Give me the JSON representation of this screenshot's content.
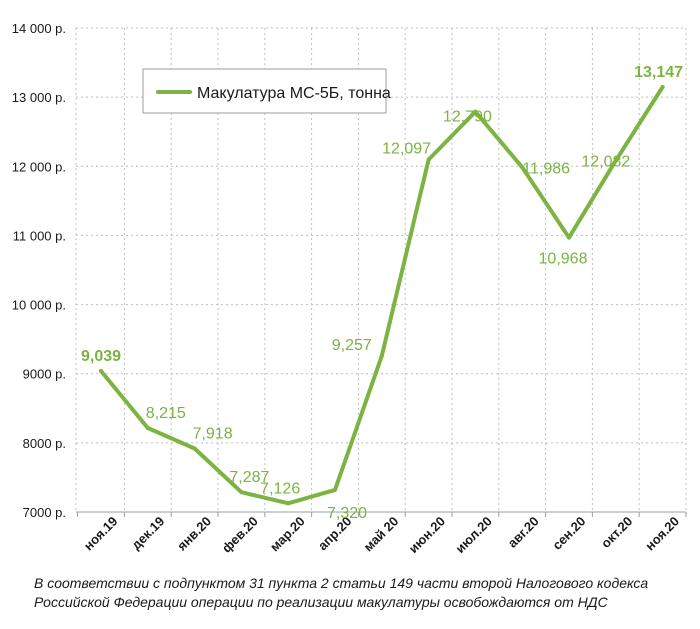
{
  "colors": {
    "line": "#7cb342",
    "grid": "#bfbfbf",
    "text": "#1a1a1a"
  },
  "chart_data": {
    "type": "line",
    "categories": [
      "ноя.19",
      "дек.19",
      "янв.20",
      "фев.20",
      "мар.20",
      "апр.20",
      "май 20",
      "июн.20",
      "июл.20",
      "авг.20",
      "сен.20",
      "окт.20",
      "ноя.20"
    ],
    "series": [
      {
        "name": "Макулатура МС-5Б, тонна",
        "values": [
          9039,
          8215,
          7918,
          7287,
          7126,
          7320,
          9257,
          12097,
          12790,
          11986,
          10968,
          12082,
          13147
        ]
      }
    ],
    "data_labels": [
      "9,039",
      "8,215",
      "7,918",
      "7,287",
      "7,126",
      "7,320",
      "9,257",
      "12,097",
      "12,790",
      "11,986",
      "10,968",
      "12,082",
      "13,147"
    ],
    "bold_labels": [
      0,
      12
    ],
    "y_tick_values": [
      7000,
      8000,
      9000,
      10000,
      11000,
      12000,
      13000,
      14000
    ],
    "y_tick_labels": [
      "7000 р.",
      "8000 р.",
      "9000 р.",
      "10 000 р.",
      "11 000 р.",
      "12 000 р.",
      "13 000 р.",
      "14 000 р."
    ],
    "ylim": [
      7000,
      14000
    ],
    "grid": true,
    "legend_position": "top-left"
  },
  "footnote": "В соответствии с подпунктом 31 пункта 2 статьи 149 части второй Налогового кодекса Российской Федерации операции по реализации макулатуры освобождаются от НДС"
}
